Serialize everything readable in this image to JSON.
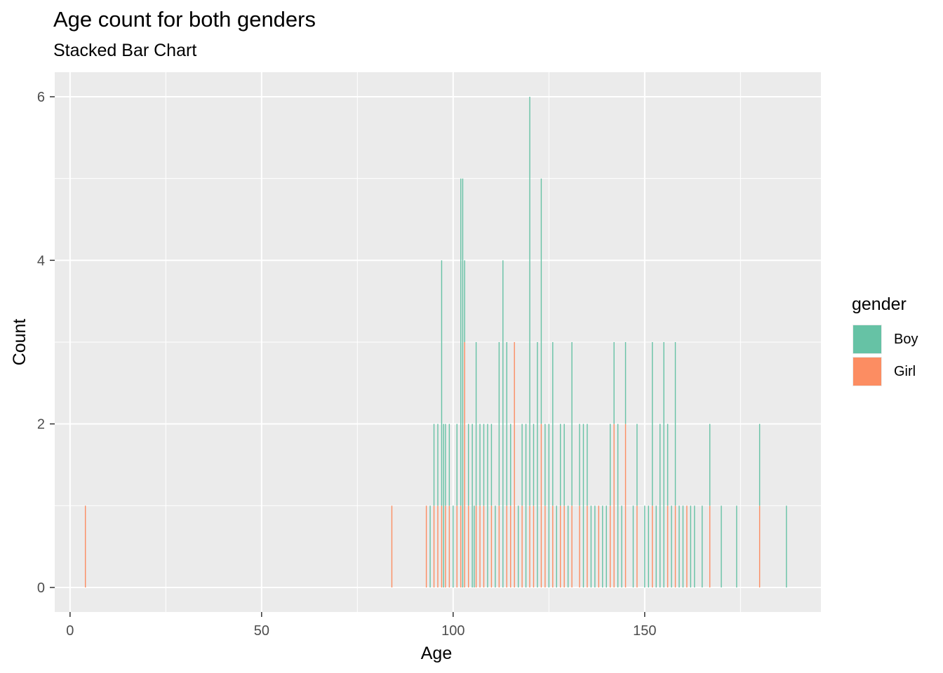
{
  "chart_data": {
    "type": "bar",
    "stacked": true,
    "title": "Age count for both genders",
    "subtitle": "Stacked Bar Chart",
    "xlabel": "Age",
    "ylabel": "Count",
    "xlim": [
      -4,
      196
    ],
    "ylim": [
      -0.3,
      6.3
    ],
    "xticks": [
      0,
      50,
      100,
      150
    ],
    "yticks": [
      0,
      2,
      4,
      6
    ],
    "grid": true,
    "legend_title": "gender",
    "legend_position": "right",
    "series": [
      {
        "name": "Boy",
        "color": "#66C2A5",
        "points": [
          [
            94,
            1
          ],
          [
            95,
            1
          ],
          [
            96,
            1
          ],
          [
            97,
            3
          ],
          [
            97.5,
            2
          ],
          [
            98,
            1
          ],
          [
            99,
            1
          ],
          [
            100,
            1
          ],
          [
            101,
            1
          ],
          [
            102,
            4
          ],
          [
            102.5,
            5
          ],
          [
            103,
            1
          ],
          [
            104,
            1
          ],
          [
            105,
            2
          ],
          [
            105.5,
            1
          ],
          [
            106,
            2
          ],
          [
            107,
            1
          ],
          [
            108,
            1
          ],
          [
            109,
            2
          ],
          [
            110,
            1
          ],
          [
            111,
            1
          ],
          [
            112,
            2
          ],
          [
            113,
            4
          ],
          [
            114,
            2
          ],
          [
            115,
            1
          ],
          [
            117,
            1
          ],
          [
            118,
            1
          ],
          [
            119,
            2
          ],
          [
            120,
            5
          ],
          [
            121,
            1
          ],
          [
            122,
            3
          ],
          [
            123,
            3
          ],
          [
            124,
            1
          ],
          [
            125,
            2
          ],
          [
            126,
            2
          ],
          [
            127,
            1
          ],
          [
            128,
            1
          ],
          [
            129,
            1
          ],
          [
            130,
            1
          ],
          [
            131,
            2
          ],
          [
            133,
            1
          ],
          [
            134,
            2
          ],
          [
            135,
            1
          ],
          [
            136,
            1
          ],
          [
            137,
            1
          ],
          [
            139,
            1
          ],
          [
            140,
            1
          ],
          [
            141,
            1
          ],
          [
            142,
            1
          ],
          [
            143,
            2
          ],
          [
            144,
            1
          ],
          [
            145,
            1
          ],
          [
            147,
            1
          ],
          [
            148,
            1
          ],
          [
            150,
            1
          ],
          [
            151,
            1
          ],
          [
            152,
            2
          ],
          [
            153,
            1
          ],
          [
            154,
            2
          ],
          [
            155,
            3
          ],
          [
            156,
            1
          ],
          [
            157,
            1
          ],
          [
            158,
            2
          ],
          [
            159,
            1
          ],
          [
            160,
            1
          ],
          [
            162,
            1
          ],
          [
            163,
            1
          ],
          [
            165,
            1
          ],
          [
            167,
            1
          ],
          [
            170,
            1
          ],
          [
            174,
            1
          ],
          [
            180,
            1
          ],
          [
            187,
            1
          ]
        ]
      },
      {
        "name": "Girl",
        "color": "#FC8D62",
        "points": [
          [
            4,
            1
          ],
          [
            84,
            1
          ],
          [
            93,
            1
          ],
          [
            95,
            1
          ],
          [
            96,
            1
          ],
          [
            97,
            1
          ],
          [
            98,
            1
          ],
          [
            99,
            1
          ],
          [
            101,
            1
          ],
          [
            102,
            1
          ],
          [
            103,
            3
          ],
          [
            104,
            1
          ],
          [
            106,
            1
          ],
          [
            107,
            1
          ],
          [
            108,
            1
          ],
          [
            110,
            1
          ],
          [
            112,
            1
          ],
          [
            114,
            1
          ],
          [
            115,
            1
          ],
          [
            116,
            3
          ],
          [
            118,
            1
          ],
          [
            120,
            1
          ],
          [
            121,
            1
          ],
          [
            123,
            2
          ],
          [
            124,
            1
          ],
          [
            126,
            1
          ],
          [
            128,
            1
          ],
          [
            129,
            1
          ],
          [
            131,
            1
          ],
          [
            133,
            1
          ],
          [
            135,
            1
          ],
          [
            138,
            1
          ],
          [
            141,
            1
          ],
          [
            142,
            2
          ],
          [
            145,
            2
          ],
          [
            148,
            1
          ],
          [
            152,
            1
          ],
          [
            156,
            1
          ],
          [
            158,
            1
          ],
          [
            161,
            1
          ],
          [
            167,
            1
          ],
          [
            180,
            1
          ]
        ]
      }
    ]
  }
}
